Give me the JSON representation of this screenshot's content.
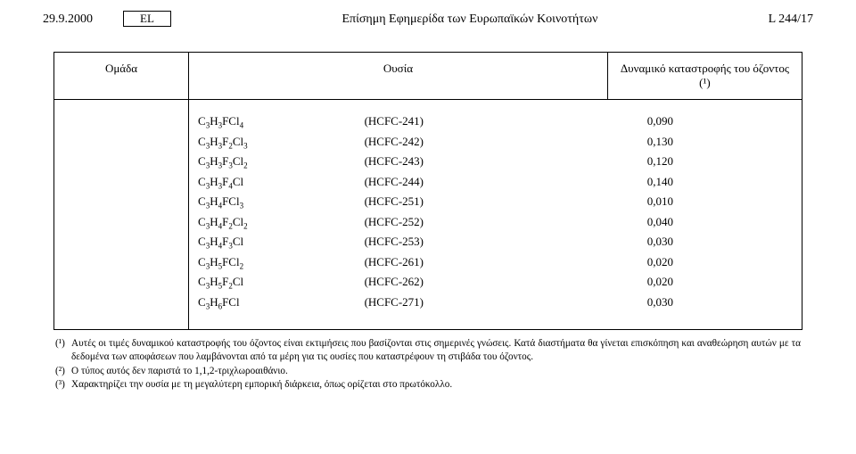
{
  "header": {
    "date": "29.9.2000",
    "lang": "EL",
    "title": "Επίσημη Εφημερίδα των Ευρωπαϊκών Κοινοτήτων",
    "page": "L 244/17"
  },
  "table": {
    "columns": {
      "group": "Ομάδα",
      "substance": "Ουσία",
      "odp": "Δυναμικό καταστροφής του όζοντος (¹)"
    },
    "rows": [
      {
        "formula": "C₃H₃FCl₄",
        "label": "(HCFC-241)",
        "value": "0,090"
      },
      {
        "formula": "C₃H₃F₂Cl₃",
        "label": "(HCFC-242)",
        "value": "0,130"
      },
      {
        "formula": "C₃H₃F₃Cl₂",
        "label": "(HCFC-243)",
        "value": "0,120"
      },
      {
        "formula": "C₃H₃F₄Cl",
        "label": "(HCFC-244)",
        "value": "0,140"
      },
      {
        "formula": "C₃H₄FCl₃",
        "label": "(HCFC-251)",
        "value": "0,010"
      },
      {
        "formula": "C₃H₄F₂Cl₂",
        "label": "(HCFC-252)",
        "value": "0,040"
      },
      {
        "formula": "C₃H₄F₃Cl",
        "label": "(HCFC-253)",
        "value": "0,030"
      },
      {
        "formula": "C₃H₅FCl₂",
        "label": "(HCFC-261)",
        "value": "0,020"
      },
      {
        "formula": "C₃H₅F₂Cl",
        "label": "(HCFC-262)",
        "value": "0,020"
      },
      {
        "formula": "C₃H₆FCl",
        "label": "(HCFC-271)",
        "value": "0,030"
      }
    ]
  },
  "footnotes": [
    {
      "mark": "(¹)",
      "text": "Αυτές οι τιμές δυναμικού καταστροφής του όζοντος είναι εκτιμήσεις που βασίζονται στις σημερινές γνώσεις. Κατά διαστήματα θα γίνεται επισκόπηση και αναθεώρηση αυτών με τα δεδομένα των αποφάσεων που λαμβάνονται από τα μέρη για τις ουσίες που καταστρέφουν τη στιβάδα του όζοντος."
    },
    {
      "mark": "(²)",
      "text": "Ο τύπος αυτός δεν παριστά το 1,1,2-τριχλωροαιθάνιο."
    },
    {
      "mark": "(³)",
      "text": "Χαρακτηρίζει την ουσία με τη μεγαλύτερη εμπορική διάρκεια, όπως ορίζεται στο πρωτόκολλο."
    }
  ]
}
